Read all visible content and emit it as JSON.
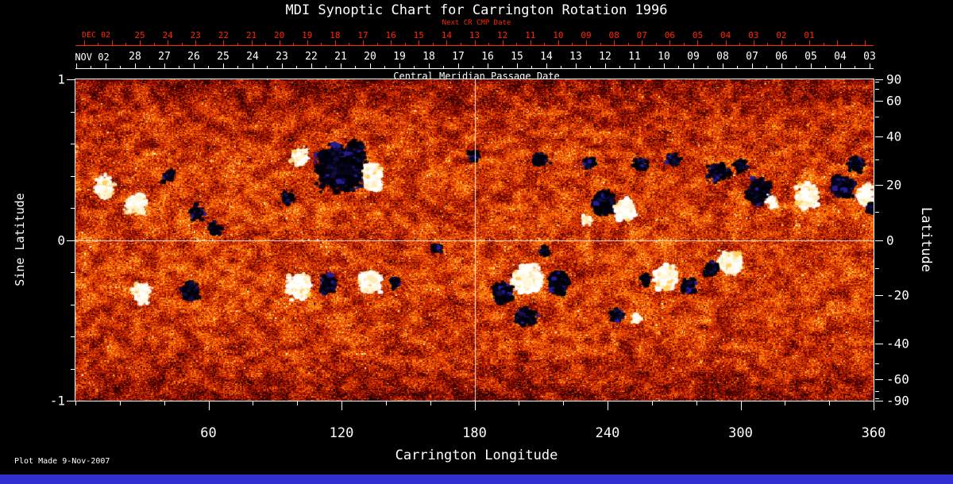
{
  "page": {
    "background": "#000000",
    "plot_made": "Plot Made  9-Nov-2007"
  },
  "chart_data": {
    "type": "heatmap",
    "title": "MDI Synoptic Chart for Carrington Rotation 1996",
    "xlabel": "Carrington Longitude",
    "xlim": [
      0,
      360
    ],
    "x_ticks": [
      60,
      120,
      180,
      240,
      300,
      360
    ],
    "x_minor_step": 20,
    "ylabel_left": "Sine Latitude",
    "y_left_tick_labels": [
      "1",
      "0",
      "-1"
    ],
    "y_left_tick_values": [
      1,
      0,
      -1
    ],
    "ylabel_right": "Latitude",
    "y_right_ticks": [
      90,
      60,
      40,
      20,
      0,
      -20,
      -40,
      -60,
      -90
    ],
    "top_axes": {
      "next_cr": {
        "label": "Next CR CMP Date",
        "prefix": "DEC 02",
        "tick_labels": [
          "25",
          "24",
          "23",
          "22",
          "21",
          "20",
          "19",
          "18",
          "17",
          "16",
          "15",
          "14",
          "13",
          "12",
          "11",
          "10",
          "09",
          "08",
          "07",
          "06",
          "05",
          "04",
          "03",
          "02",
          "01"
        ],
        "first_frac": 0.0806,
        "last_frac": 0.9194,
        "color": "#ff2600"
      },
      "cmp": {
        "label": "Central Meridian Passage Date",
        "prefix": "NOV 02",
        "tick_labels": [
          "28",
          "27",
          "26",
          "25",
          "24",
          "23",
          "22",
          "21",
          "20",
          "19",
          "18",
          "17",
          "16",
          "15",
          "14",
          "13",
          "12",
          "11",
          "10",
          "09",
          "08",
          "07",
          "06",
          "05",
          "04",
          "03"
        ],
        "first_frac": 0.0746,
        "last_frac": 0.995,
        "color": "#ffffff"
      }
    },
    "crosshair": {
      "longitude": 180,
      "sine_latitude": 0
    },
    "colors": {
      "background": "#000000",
      "frame": "#ffffff",
      "red_axis": "#ff2600",
      "bottom_bar": "#3030d0",
      "positive_polarity": "#ffffff",
      "negative_polarity": "#000010"
    },
    "active_regions": [
      {
        "lon": 120,
        "slat": 0.45,
        "rx": 13,
        "ry": 0.16,
        "pol": "neg",
        "s": "strong"
      },
      {
        "lon": 134,
        "slat": 0.4,
        "rx": 5,
        "ry": 0.1,
        "pol": "pos",
        "s": "strong"
      },
      {
        "lon": 101,
        "slat": 0.52,
        "rx": 5,
        "ry": 0.07,
        "pol": "pos",
        "s": "medium"
      },
      {
        "lon": 96,
        "slat": 0.26,
        "rx": 3.5,
        "ry": 0.05,
        "pol": "neg",
        "s": "medium"
      },
      {
        "lon": 127,
        "slat": 0.58,
        "rx": 4,
        "ry": 0.05,
        "pol": "neg",
        "s": "medium"
      },
      {
        "lon": 13,
        "slat": 0.33,
        "rx": 5,
        "ry": 0.09,
        "pol": "pos",
        "s": "medium"
      },
      {
        "lon": 27,
        "slat": 0.22,
        "rx": 6,
        "ry": 0.08,
        "pol": "pos",
        "s": "medium"
      },
      {
        "lon": 42,
        "slat": 0.4,
        "rx": 3,
        "ry": 0.05,
        "pol": "neg",
        "s": "weak"
      },
      {
        "lon": 55,
        "slat": 0.17,
        "rx": 4,
        "ry": 0.06,
        "pol": "neg",
        "s": "weak"
      },
      {
        "lon": 63,
        "slat": 0.07,
        "rx": 4,
        "ry": 0.06,
        "pol": "neg",
        "s": "weak"
      },
      {
        "lon": 30,
        "slat": -0.33,
        "rx": 5,
        "ry": 0.08,
        "pol": "pos",
        "s": "medium"
      },
      {
        "lon": 52,
        "slat": -0.32,
        "rx": 5,
        "ry": 0.07,
        "pol": "neg",
        "s": "medium"
      },
      {
        "lon": 101,
        "slat": -0.29,
        "rx": 6,
        "ry": 0.09,
        "pol": "pos",
        "s": "strong"
      },
      {
        "lon": 114,
        "slat": -0.28,
        "rx": 4,
        "ry": 0.07,
        "pol": "neg",
        "s": "strong"
      },
      {
        "lon": 133,
        "slat": -0.26,
        "rx": 6,
        "ry": 0.08,
        "pol": "pos",
        "s": "strong"
      },
      {
        "lon": 144,
        "slat": -0.27,
        "rx": 3,
        "ry": 0.05,
        "pol": "neg",
        "s": "medium"
      },
      {
        "lon": 163,
        "slat": -0.05,
        "rx": 3,
        "ry": 0.04,
        "pol": "neg",
        "s": "weak"
      },
      {
        "lon": 204,
        "slat": -0.24,
        "rx": 8,
        "ry": 0.1,
        "pol": "pos",
        "s": "strong"
      },
      {
        "lon": 193,
        "slat": -0.33,
        "rx": 5,
        "ry": 0.08,
        "pol": "neg",
        "s": "strong"
      },
      {
        "lon": 218,
        "slat": -0.27,
        "rx": 5,
        "ry": 0.09,
        "pol": "neg",
        "s": "strong"
      },
      {
        "lon": 203,
        "slat": -0.48,
        "rx": 6,
        "ry": 0.07,
        "pol": "neg",
        "s": "medium"
      },
      {
        "lon": 212,
        "slat": -0.07,
        "rx": 3,
        "ry": 0.04,
        "pol": "neg",
        "s": "weak"
      },
      {
        "lon": 238,
        "slat": 0.23,
        "rx": 6,
        "ry": 0.09,
        "pol": "neg",
        "s": "strong"
      },
      {
        "lon": 248,
        "slat": 0.19,
        "rx": 5,
        "ry": 0.08,
        "pol": "pos",
        "s": "strong"
      },
      {
        "lon": 230,
        "slat": 0.12,
        "rx": 3,
        "ry": 0.04,
        "pol": "pos",
        "s": "weak"
      },
      {
        "lon": 244,
        "slat": -0.47,
        "rx": 3.5,
        "ry": 0.05,
        "pol": "neg",
        "s": "medium"
      },
      {
        "lon": 253,
        "slat": -0.49,
        "rx": 2.5,
        "ry": 0.04,
        "pol": "pos",
        "s": "weak"
      },
      {
        "lon": 266,
        "slat": -0.23,
        "rx": 6,
        "ry": 0.09,
        "pol": "pos",
        "s": "strong"
      },
      {
        "lon": 257,
        "slat": -0.25,
        "rx": 3,
        "ry": 0.05,
        "pol": "neg",
        "s": "medium"
      },
      {
        "lon": 277,
        "slat": -0.29,
        "rx": 4,
        "ry": 0.06,
        "pol": "neg",
        "s": "medium"
      },
      {
        "lon": 295,
        "slat": -0.14,
        "rx": 6,
        "ry": 0.08,
        "pol": "pos",
        "s": "strong"
      },
      {
        "lon": 287,
        "slat": -0.18,
        "rx": 4,
        "ry": 0.06,
        "pol": "neg",
        "s": "medium"
      },
      {
        "lon": 290,
        "slat": 0.42,
        "rx": 6,
        "ry": 0.07,
        "pol": "neg",
        "s": "medium"
      },
      {
        "lon": 308,
        "slat": 0.3,
        "rx": 6,
        "ry": 0.09,
        "pol": "neg",
        "s": "strong"
      },
      {
        "lon": 314,
        "slat": 0.24,
        "rx": 3,
        "ry": 0.05,
        "pol": "pos",
        "s": "medium"
      },
      {
        "lon": 330,
        "slat": 0.27,
        "rx": 6,
        "ry": 0.09,
        "pol": "pos",
        "s": "strong"
      },
      {
        "lon": 346,
        "slat": 0.33,
        "rx": 6,
        "ry": 0.08,
        "pol": "neg",
        "s": "strong"
      },
      {
        "lon": 356,
        "slat": 0.28,
        "rx": 4,
        "ry": 0.07,
        "pol": "pos",
        "s": "strong"
      },
      {
        "lon": 352,
        "slat": 0.47,
        "rx": 4,
        "ry": 0.06,
        "pol": "neg",
        "s": "medium"
      },
      {
        "lon": 300,
        "slat": 0.46,
        "rx": 4,
        "ry": 0.05,
        "pol": "neg",
        "s": "weak"
      },
      {
        "lon": 359,
        "slat": 0.2,
        "rx": 3,
        "ry": 0.05,
        "pol": "neg",
        "s": "medium"
      },
      {
        "lon": 180,
        "slat": 0.52,
        "rx": 4,
        "ry": 0.05,
        "pol": "neg",
        "s": "weak"
      },
      {
        "lon": 210,
        "slat": 0.5,
        "rx": 5,
        "ry": 0.05,
        "pol": "neg",
        "s": "weak"
      },
      {
        "lon": 232,
        "slat": 0.48,
        "rx": 4,
        "ry": 0.05,
        "pol": "neg",
        "s": "weak"
      },
      {
        "lon": 255,
        "slat": 0.47,
        "rx": 4,
        "ry": 0.05,
        "pol": "neg",
        "s": "weak"
      },
      {
        "lon": 270,
        "slat": 0.5,
        "rx": 4,
        "ry": 0.05,
        "pol": "neg",
        "s": "weak"
      }
    ]
  }
}
